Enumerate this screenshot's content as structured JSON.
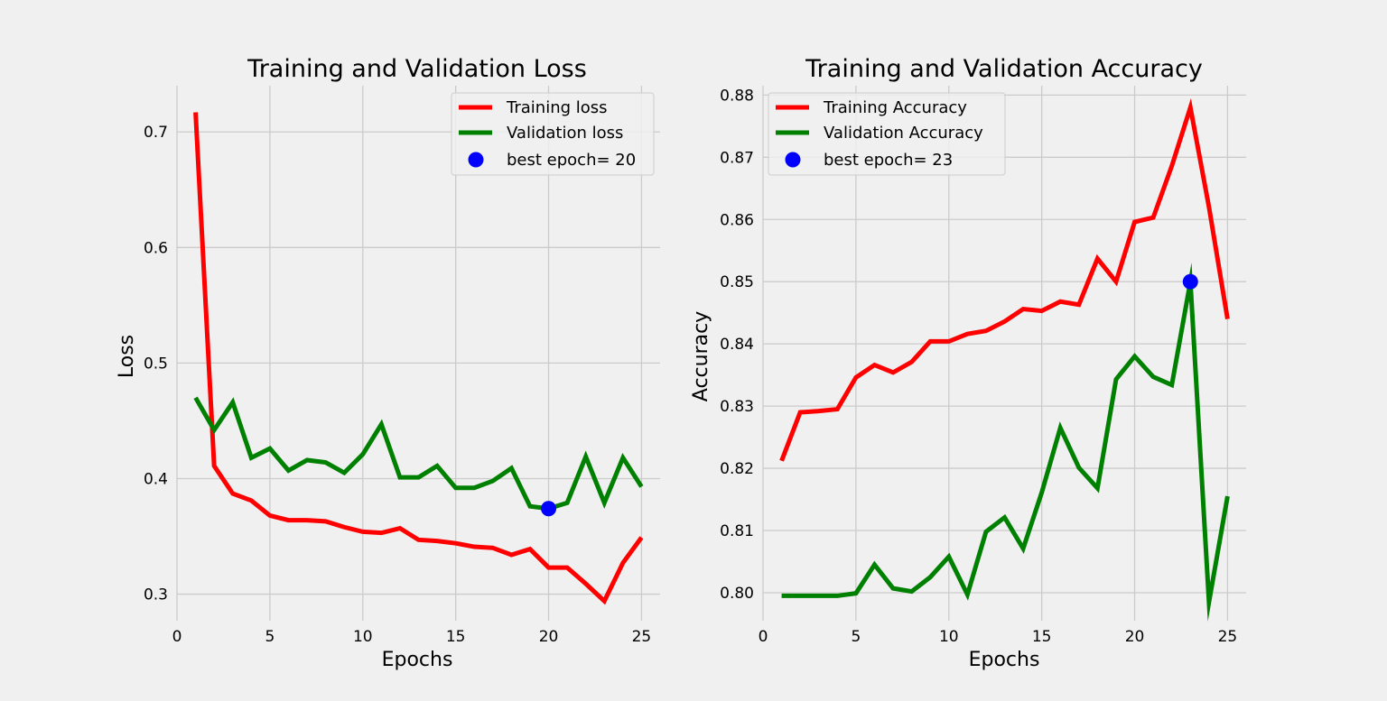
{
  "style": {
    "background": "#f0f0f0",
    "grid_color": "#cbcbcb",
    "training_color": "#ff0000",
    "validation_color": "#008000",
    "best_marker_color": "#0000ff"
  },
  "chart_data": [
    {
      "type": "line",
      "title": "Training and Validation Loss",
      "xlabel": "Epochs",
      "ylabel": "Loss",
      "xlim": [
        0,
        26
      ],
      "ylim": [
        0.277,
        0.74
      ],
      "xticks": [
        0,
        5,
        10,
        15,
        20,
        25
      ],
      "xtick_labels": [
        "0",
        "5",
        "10",
        "15",
        "20",
        "25"
      ],
      "yticks": [
        0.3,
        0.4,
        0.5,
        0.6,
        0.7
      ],
      "ytick_labels": [
        "0.3",
        "0.4",
        "0.5",
        "0.6",
        "0.7"
      ],
      "grid": true,
      "legend_position": "top-right",
      "x": [
        1,
        2,
        3,
        4,
        5,
        6,
        7,
        8,
        9,
        10,
        11,
        12,
        13,
        14,
        15,
        16,
        17,
        18,
        19,
        20,
        21,
        22,
        23,
        24,
        25
      ],
      "series": [
        {
          "name": "Training loss",
          "color": "#ff0000",
          "values": [
            0.717,
            0.411,
            0.387,
            0.381,
            0.368,
            0.364,
            0.364,
            0.363,
            0.358,
            0.354,
            0.353,
            0.357,
            0.347,
            0.346,
            0.344,
            0.341,
            0.34,
            0.334,
            0.339,
            0.323,
            0.323,
            0.309,
            0.294,
            0.327,
            0.349
          ]
        },
        {
          "name": "Validation loss",
          "color": "#008000",
          "values": [
            0.47,
            0.442,
            0.466,
            0.418,
            0.426,
            0.407,
            0.416,
            0.414,
            0.405,
            0.421,
            0.447,
            0.401,
            0.401,
            0.411,
            0.392,
            0.392,
            0.398,
            0.409,
            0.376,
            0.374,
            0.379,
            0.419,
            0.379,
            0.418,
            0.393
          ]
        }
      ],
      "best": {
        "label": "best epoch= 20",
        "x": 20,
        "y": 0.374,
        "color": "#0000ff"
      }
    },
    {
      "type": "line",
      "title": "Training and Validation Accuracy",
      "xlabel": "Epochs",
      "ylabel": "Accuracy",
      "xlim": [
        0,
        26
      ],
      "ylim": [
        0.7955,
        0.8815
      ],
      "xticks": [
        0,
        5,
        10,
        15,
        20,
        25
      ],
      "xtick_labels": [
        "0",
        "5",
        "10",
        "15",
        "20",
        "25"
      ],
      "yticks": [
        0.8,
        0.81,
        0.82,
        0.83,
        0.84,
        0.85,
        0.86,
        0.87,
        0.88
      ],
      "ytick_labels": [
        "0.80",
        "0.81",
        "0.82",
        "0.83",
        "0.84",
        "0.85",
        "0.86",
        "0.87",
        "0.88"
      ],
      "grid": true,
      "legend_position": "top-left",
      "x": [
        1,
        2,
        3,
        4,
        5,
        6,
        7,
        8,
        9,
        10,
        11,
        12,
        13,
        14,
        15,
        16,
        17,
        18,
        19,
        20,
        21,
        22,
        23,
        24,
        25
      ],
      "series": [
        {
          "name": "Training Accuracy",
          "color": "#ff0000",
          "values": [
            0.8212,
            0.829,
            0.8292,
            0.8295,
            0.8346,
            0.8366,
            0.8354,
            0.8371,
            0.8404,
            0.8404,
            0.8416,
            0.8421,
            0.8436,
            0.8456,
            0.8453,
            0.8468,
            0.8463,
            0.8537,
            0.85,
            0.8596,
            0.8603,
            0.8686,
            0.878,
            0.862,
            0.844
          ]
        },
        {
          "name": "Validation Accuracy",
          "color": "#008000",
          "values": [
            0.7995,
            0.7995,
            0.7995,
            0.7995,
            0.7999,
            0.8045,
            0.8007,
            0.8002,
            0.8025,
            0.8058,
            0.7997,
            0.8098,
            0.8121,
            0.8071,
            0.8161,
            0.8265,
            0.8201,
            0.8168,
            0.8343,
            0.838,
            0.8347,
            0.8334,
            0.85,
            0.7985,
            0.8155
          ]
        }
      ],
      "best": {
        "label": "best epoch= 23",
        "x": 23,
        "y": 0.85,
        "color": "#0000ff"
      }
    }
  ]
}
